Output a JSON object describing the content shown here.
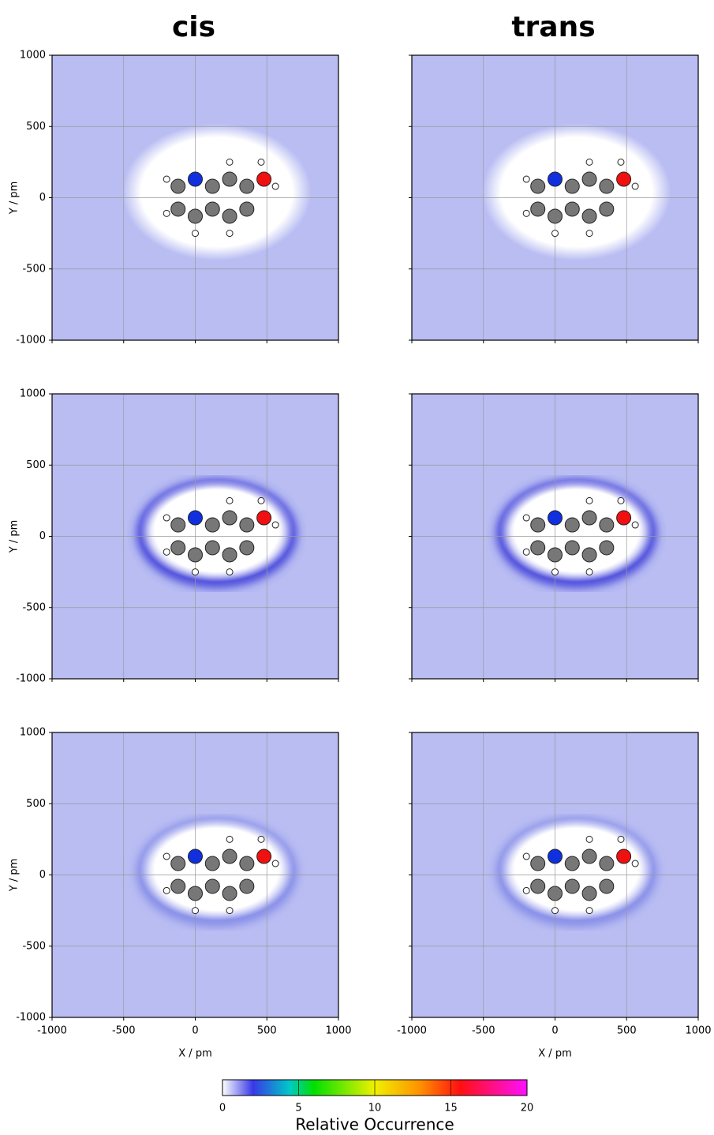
{
  "chart_data": [
    {
      "type": "heatmap",
      "title": "cis",
      "ylabel": "Y / pm",
      "xlim": [
        -1000,
        1000
      ],
      "ylim": [
        -1000,
        1000
      ],
      "xticks": [
        -1000,
        -500,
        0,
        500,
        1000
      ],
      "yticks": [
        -1000,
        -500,
        0,
        500,
        1000
      ],
      "grid": true
    },
    {
      "type": "heatmap",
      "title": "trans",
      "xlim": [
        -1000,
        1000
      ],
      "ylim": [
        -1000,
        1000
      ],
      "xticks": [
        -1000,
        -500,
        0,
        500,
        1000
      ],
      "yticks": [
        -1000,
        -500,
        0,
        500,
        1000
      ],
      "grid": true
    },
    {
      "type": "heatmap",
      "ylabel": "Y / pm",
      "xlim": [
        -1000,
        1000
      ],
      "ylim": [
        -1000,
        1000
      ],
      "xticks": [
        -1000,
        -500,
        0,
        500,
        1000
      ],
      "yticks": [
        -1000,
        -500,
        0,
        500,
        1000
      ],
      "grid": true
    },
    {
      "type": "heatmap",
      "xlim": [
        -1000,
        1000
      ],
      "ylim": [
        -1000,
        1000
      ],
      "xticks": [
        -1000,
        -500,
        0,
        500,
        1000
      ],
      "yticks": [
        -1000,
        -500,
        0,
        500,
        1000
      ],
      "grid": true
    },
    {
      "type": "heatmap",
      "ylabel": "Y / pm",
      "xlabel": "X / pm",
      "xlim": [
        -1000,
        1000
      ],
      "ylim": [
        -1000,
        1000
      ],
      "xticks": [
        -1000,
        -500,
        0,
        500,
        1000
      ],
      "yticks": [
        -1000,
        -500,
        0,
        500,
        1000
      ],
      "grid": true
    },
    {
      "type": "heatmap",
      "xlabel": "X / pm",
      "xlim": [
        -1000,
        1000
      ],
      "ylim": [
        -1000,
        1000
      ],
      "xticks": [
        -1000,
        -500,
        0,
        500,
        1000
      ],
      "yticks": [
        -1000,
        -500,
        0,
        500,
        1000
      ],
      "grid": true
    },
    {
      "type": "colorbar",
      "label": "Relative Occurrence",
      "lim": [
        0,
        20
      ],
      "ticks": [
        0,
        5,
        10,
        15,
        20
      ]
    }
  ]
}
